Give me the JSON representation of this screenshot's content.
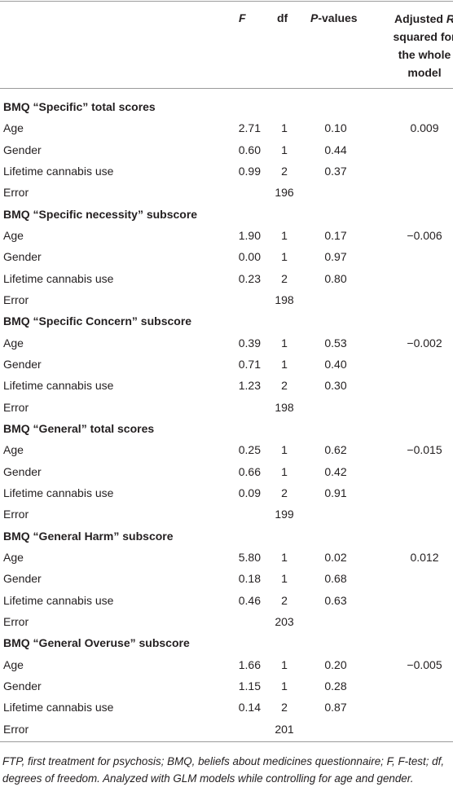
{
  "header": {
    "F": "F",
    "df": "df",
    "p_italic": "P",
    "p_rest": "-values",
    "adj_pre": "Adjusted",
    "adj_italic": "R",
    "adj_post": "squared for the whole model"
  },
  "sections": [
    {
      "title": "BMQ “Specific” total scores",
      "rows": [
        {
          "label": "Age",
          "F": "2.71",
          "df": "1",
          "p": "0.10",
          "adj": "0.009"
        },
        {
          "label": "Gender",
          "F": "0.60",
          "df": "1",
          "p": "0.44"
        },
        {
          "label": "Lifetime cannabis use",
          "F": "0.99",
          "df": "2",
          "p": "0.37"
        },
        {
          "label": "Error",
          "df": "196"
        }
      ]
    },
    {
      "title": "BMQ “Specific necessity” subscore",
      "rows": [
        {
          "label": "Age",
          "F": "1.90",
          "df": "1",
          "p": "0.17",
          "adj": "−0.006"
        },
        {
          "label": "Gender",
          "F": "0.00",
          "df": "1",
          "p": "0.97"
        },
        {
          "label": "Lifetime cannabis use",
          "F": "0.23",
          "df": "2",
          "p": "0.80"
        },
        {
          "label": "Error",
          "df": "198"
        }
      ]
    },
    {
      "title": "BMQ “Specific Concern” subscore",
      "rows": [
        {
          "label": "Age",
          "F": "0.39",
          "df": "1",
          "p": "0.53",
          "adj": "−0.002"
        },
        {
          "label": "Gender",
          "F": "0.71",
          "df": "1",
          "p": "0.40"
        },
        {
          "label": "Lifetime cannabis use",
          "F": "1.23",
          "df": "2",
          "p": "0.30"
        },
        {
          "label": "Error",
          "df": "198"
        }
      ]
    },
    {
      "title": "BMQ “General” total scores",
      "rows": [
        {
          "label": "Age",
          "F": "0.25",
          "df": "1",
          "p": "0.62",
          "adj": "−0.015"
        },
        {
          "label": "Gender",
          "F": "0.66",
          "df": "1",
          "p": "0.42"
        },
        {
          "label": "Lifetime cannabis use",
          "F": "0.09",
          "df": "2",
          "p": "0.91"
        },
        {
          "label": "Error",
          "df": "199"
        }
      ]
    },
    {
      "title": "BMQ “General Harm” subscore",
      "rows": [
        {
          "label": "Age",
          "F": "5.80",
          "df": "1",
          "p": "0.02",
          "adj": "0.012"
        },
        {
          "label": "Gender",
          "F": "0.18",
          "df": "1",
          "p": "0.68"
        },
        {
          "label": "Lifetime cannabis use",
          "F": "0.46",
          "df": "2",
          "p": "0.63"
        },
        {
          "label": "Error",
          "df": "203"
        }
      ]
    },
    {
      "title": "BMQ “General Overuse” subscore",
      "rows": [
        {
          "label": "Age",
          "F": "1.66",
          "df": "1",
          "p": "0.20",
          "adj": "−0.005"
        },
        {
          "label": "Gender",
          "F": "1.15",
          "df": "1",
          "p": "0.28"
        },
        {
          "label": "Lifetime cannabis use",
          "F": "0.14",
          "df": "2",
          "p": "0.87"
        },
        {
          "label": "Error",
          "df": "201"
        }
      ]
    }
  ],
  "footnote": "FTP, first treatment for psychosis; BMQ, beliefs about medicines questionnaire; F, F-test; df, degrees of freedom. Analyzed with GLM models while controlling for age and gender."
}
